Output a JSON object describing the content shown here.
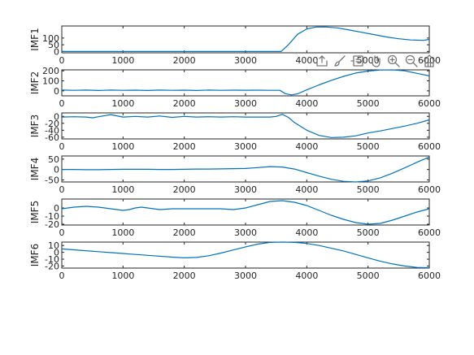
{
  "chart_data": [
    {
      "type": "line",
      "ylabel": "IMF1",
      "xlim": [
        0,
        6000
      ],
      "ylim": [
        -10,
        190
      ],
      "xticks": [
        "0",
        "1000",
        "2000",
        "3000",
        "4000",
        "5000",
        "6000"
      ],
      "yticks": [
        0,
        50,
        100
      ],
      "ytick_labels": [
        "0",
        "50",
        "100"
      ],
      "series": [
        {
          "x": [
            0,
            1000,
            2000,
            3000,
            3580,
            3700,
            3850,
            4000,
            4150,
            4300,
            4500,
            4700,
            4900,
            5100,
            5300,
            5500,
            5700,
            5900,
            6000
          ],
          "values": [
            0,
            0,
            0,
            0,
            0,
            50,
            128,
            168,
            182,
            183,
            176,
            160,
            143,
            126,
            108,
            95,
            86,
            83,
            90
          ]
        }
      ]
    },
    {
      "type": "line",
      "ylabel": "IMF2",
      "xlim": [
        0,
        6000
      ],
      "ylim": [
        -50,
        210
      ],
      "xticks": [
        "0",
        "1000",
        "2000",
        "3000",
        "4000",
        "5000",
        "6000"
      ],
      "yticks": [
        0,
        100,
        200
      ],
      "ytick_labels": [
        "0",
        "100",
        "200"
      ],
      "series": [
        {
          "x": [
            0,
            200,
            400,
            600,
            800,
            1000,
            1200,
            1400,
            1600,
            1800,
            2000,
            2200,
            2400,
            2600,
            2800,
            3000,
            3200,
            3400,
            3560,
            3650,
            3750,
            3850,
            4000,
            4200,
            4400,
            4600,
            4800,
            5000,
            5200,
            5400,
            5600,
            5800,
            6000
          ],
          "values": [
            8,
            5,
            8,
            4,
            8,
            5,
            7,
            4,
            8,
            5,
            7,
            4,
            8,
            5,
            7,
            6,
            7,
            5,
            5,
            -28,
            -40,
            -30,
            10,
            60,
            105,
            145,
            178,
            198,
            208,
            210,
            200,
            175,
            150
          ]
        }
      ]
    },
    {
      "type": "line",
      "ylabel": "IMF3",
      "xlim": [
        0,
        6000
      ],
      "ylim": [
        -65,
        10
      ],
      "xticks": [
        "0",
        "1000",
        "2000",
        "3000",
        "4000",
        "5000",
        "6000"
      ],
      "yticks": [
        -60,
        -40,
        -20,
        0
      ],
      "ytick_labels": [
        "-60",
        "-40",
        "-20",
        "0"
      ],
      "series": [
        {
          "x": [
            0,
            200,
            400,
            500,
            600,
            800,
            1000,
            1200,
            1400,
            1600,
            1800,
            2000,
            2200,
            2400,
            2600,
            2800,
            3000,
            3200,
            3400,
            3500,
            3600,
            3700,
            3800,
            4000,
            4200,
            4400,
            4600,
            4800,
            5000,
            5200,
            5400,
            5600,
            5800,
            6000
          ],
          "values": [
            -2,
            -1,
            -2,
            -4,
            -1,
            5,
            -2,
            0,
            -2,
            1,
            -3,
            0,
            -2,
            -1,
            -2,
            -1,
            -2,
            -2,
            -2,
            0,
            6,
            -3,
            -18,
            -40,
            -55,
            -61,
            -60,
            -56,
            -48,
            -42,
            -35,
            -28,
            -20,
            -10
          ]
        }
      ]
    },
    {
      "type": "line",
      "ylabel": "IMF4",
      "xlim": [
        0,
        6000
      ],
      "ylim": [
        -60,
        65
      ],
      "xticks": [
        "0",
        "1000",
        "2000",
        "3000",
        "4000",
        "5000",
        "6000"
      ],
      "yticks": [
        -50,
        0,
        50
      ],
      "ytick_labels": [
        "-50",
        "0",
        "50"
      ],
      "series": [
        {
          "x": [
            0,
            200,
            400,
            600,
            800,
            1000,
            1200,
            1400,
            1600,
            1800,
            2000,
            2200,
            2400,
            2600,
            2800,
            3000,
            3200,
            3400,
            3600,
            3800,
            4000,
            4200,
            4400,
            4600,
            4800,
            5000,
            5200,
            5400,
            5600,
            5800,
            6000
          ],
          "values": [
            0,
            0,
            -1,
            -1,
            0,
            1,
            1,
            1,
            0,
            0,
            1,
            2,
            2,
            3,
            4,
            5,
            9,
            14,
            12,
            2,
            -15,
            -32,
            -47,
            -57,
            -60,
            -55,
            -40,
            -18,
            8,
            35,
            60
          ]
        }
      ]
    },
    {
      "type": "line",
      "ylabel": "IMF5",
      "xlim": [
        0,
        6000
      ],
      "ylim": [
        -21,
        11
      ],
      "xticks": [
        "0",
        "1000",
        "2000",
        "3000",
        "4000",
        "5000",
        "6000"
      ],
      "yticks": [
        -20,
        -10,
        0
      ],
      "ytick_labels": [
        "-20",
        "-10",
        "0"
      ],
      "series": [
        {
          "x": [
            0,
            200,
            400,
            600,
            800,
            1000,
            1100,
            1200,
            1300,
            1400,
            1600,
            1800,
            2000,
            2200,
            2400,
            2600,
            2800,
            3000,
            3200,
            3400,
            3600,
            3800,
            4000,
            4200,
            4400,
            4600,
            4800,
            5000,
            5200,
            5400,
            5600,
            5800,
            6000
          ],
          "values": [
            -1,
            1,
            2,
            1,
            -1,
            -3,
            -2,
            0,
            1,
            0,
            -2,
            -1,
            -1,
            -1,
            -1,
            -1,
            -2,
            0,
            4,
            8,
            9,
            7,
            3,
            -3,
            -9,
            -14,
            -18,
            -20,
            -19,
            -15,
            -10,
            -5,
            -1
          ]
        }
      ]
    },
    {
      "type": "line",
      "ylabel": "IMF6",
      "xlim": [
        0,
        6000
      ],
      "ylim": [
        -23,
        15
      ],
      "xticks": [
        "0",
        "1000",
        "2000",
        "3000",
        "4000",
        "5000",
        "6000"
      ],
      "yticks": [
        -20,
        -10,
        0,
        10
      ],
      "ytick_labels": [
        "-20",
        "-10",
        "0",
        "10"
      ],
      "series": [
        {
          "x": [
            0,
            300,
            600,
            900,
            1200,
            1500,
            1800,
            2000,
            2200,
            2400,
            2600,
            2800,
            3000,
            3200,
            3400,
            3600,
            3800,
            4000,
            4200,
            4400,
            4600,
            4800,
            5000,
            5200,
            5400,
            5600,
            5800,
            6000
          ],
          "values": [
            5,
            3,
            1,
            -1,
            -3,
            -5,
            -7,
            -8,
            -7.5,
            -5,
            -1,
            3.5,
            8,
            12,
            14.5,
            15,
            14.5,
            13,
            10,
            6,
            2,
            -3,
            -8,
            -13,
            -17,
            -20,
            -22,
            -22.5
          ]
        }
      ]
    }
  ],
  "toolbar": {
    "icons": [
      "export-icon",
      "brush-icon",
      "datatip-icon",
      "pan-icon",
      "zoom-in-icon",
      "zoom-out-icon",
      "home-icon"
    ]
  }
}
